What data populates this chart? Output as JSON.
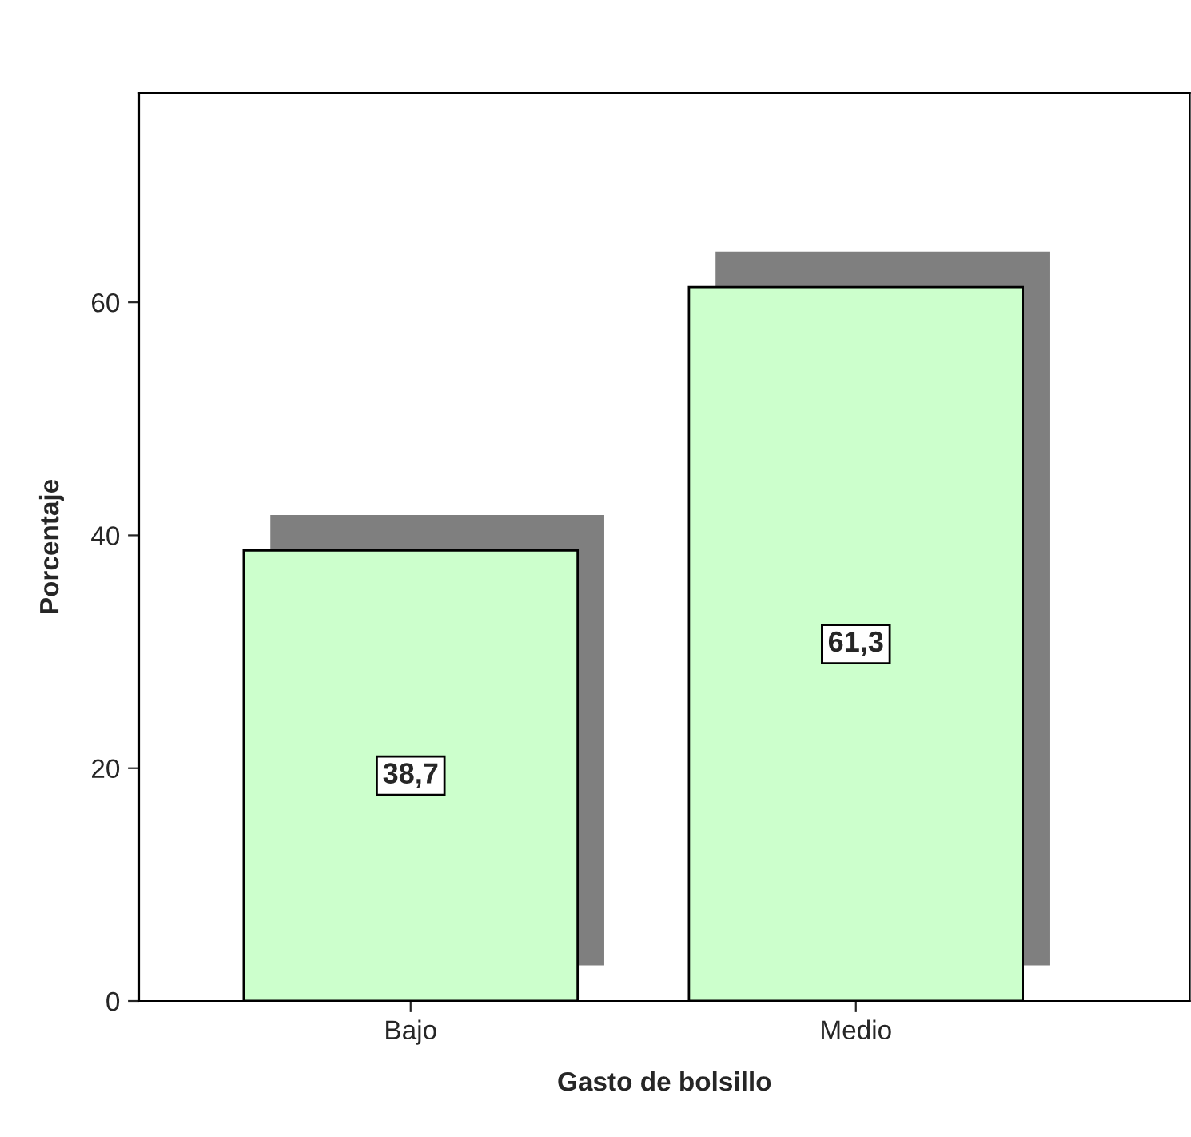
{
  "chart_data": {
    "type": "bar",
    "xlabel": "Gasto de bolsillo",
    "ylabel": "Porcentaje",
    "categories": [
      "Bajo",
      "Medio"
    ],
    "values": [
      38.7,
      61.3
    ],
    "value_labels": [
      "38,7",
      "61,3"
    ],
    "color": "#ccffcc",
    "ylim": [
      0,
      78
    ],
    "yticks": [
      0,
      20,
      40,
      60
    ],
    "grid": false,
    "legend": false
  }
}
